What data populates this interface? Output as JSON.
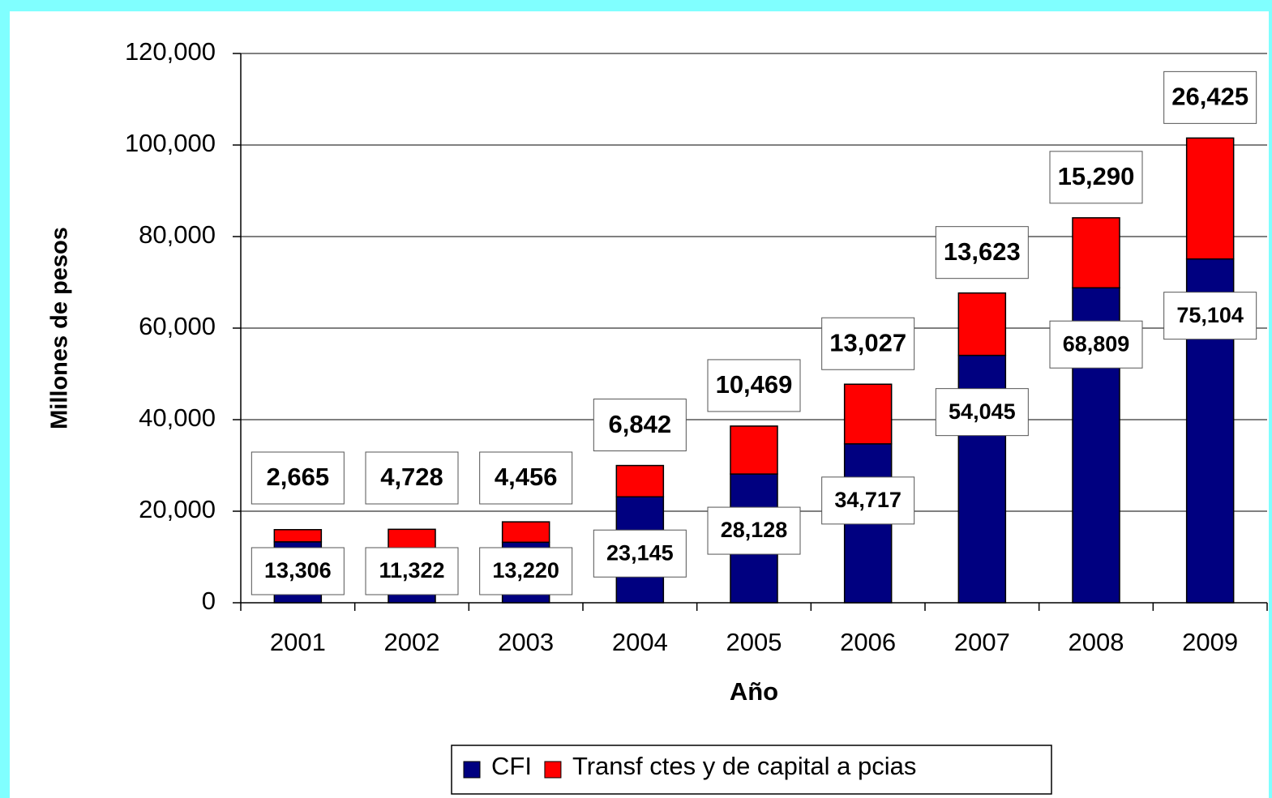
{
  "chart_data": {
    "type": "stacked_bar",
    "x_label": "Año",
    "y_label": "Millones de pesos",
    "categories": [
      "2001",
      "2002",
      "2003",
      "2004",
      "2005",
      "2006",
      "2007",
      "2008",
      "2009"
    ],
    "series": [
      {
        "name": "CFI",
        "color": "#000080",
        "values": [
          13306,
          11322,
          13220,
          23145,
          28128,
          34717,
          54045,
          68809,
          75104
        ],
        "value_labels": [
          "13,306",
          "11,322",
          "13,220",
          "23,145",
          "28,128",
          "34,717",
          "54,045",
          "68,809",
          "75,104"
        ]
      },
      {
        "name": "Transf ctes y de capital a pcias",
        "color": "#ff0000",
        "values": [
          2665,
          4728,
          4456,
          6842,
          10469,
          13027,
          13623,
          15290,
          26425
        ],
        "value_labels": [
          "2,665",
          "4,728",
          "4,456",
          "6,842",
          "10,469",
          "13,027",
          "13,623",
          "15,290",
          "26,425"
        ]
      }
    ],
    "ylim": [
      0,
      120000
    ],
    "yticks": [
      0,
      {
        "value": 20000,
        "label": "20,000"
      },
      {
        "value": 40000,
        "label": "40,000"
      },
      {
        "value": 60000,
        "label": "60,000"
      },
      {
        "value": 80000,
        "label": "80,000"
      },
      {
        "value": 100000,
        "label": "100,000"
      },
      {
        "value": 120000,
        "label": "120,000"
      }
    ],
    "grid": true,
    "legend": "bottom"
  }
}
